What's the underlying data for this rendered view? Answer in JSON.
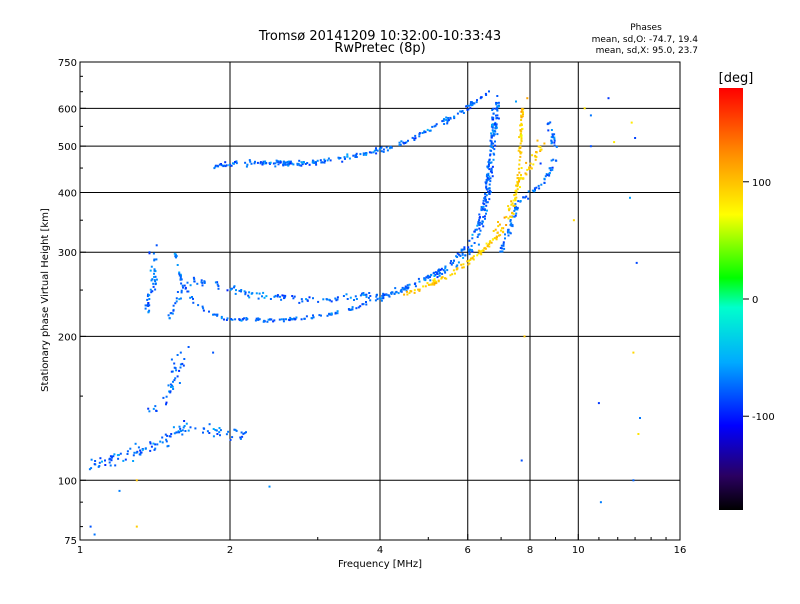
{
  "chart_data": {
    "type": "scatter",
    "title": "Tromsø 20141209 10:32:00-10:33:43",
    "subtitle": "RwPretec (8p)",
    "xlabel": "Frequency [MHz]",
    "ylabel": "Stationary phase Virtual Height [km]",
    "x_scale": "log",
    "y_scale": "log",
    "xlim": [
      1,
      16
    ],
    "ylim": [
      75,
      750
    ],
    "x_ticks": [
      1,
      2,
      4,
      6,
      8,
      10,
      16
    ],
    "y_ticks": [
      75,
      100,
      200,
      300,
      400,
      500,
      600,
      750
    ],
    "x_gridlines": [
      2,
      4,
      6,
      8,
      10
    ],
    "y_gridlines": [
      100,
      200,
      300,
      400,
      500,
      600
    ],
    "grid": true,
    "annotation": {
      "heading": "Phases",
      "line_o": "mean, sd,O: -74.7, 19.4",
      "line_x": "mean, sd,X:  95.0, 23.7"
    },
    "colorbar": {
      "label": "[deg]",
      "ticks": [
        100,
        0,
        -100
      ],
      "range": [
        -180,
        180
      ],
      "colormap": "rainbow"
    },
    "series": [
      {
        "name": "O",
        "phase_deg": -74.7,
        "traces": [
          {
            "points": [
              [
                1.52,
                220
              ],
              [
                1.55,
                235
              ],
              [
                1.6,
                250
              ],
              [
                1.65,
                258
              ],
              [
                1.7,
                262
              ],
              [
                1.8,
                260
              ],
              [
                1.95,
                252
              ],
              [
                2.2,
                245
              ],
              [
                2.6,
                240
              ],
              [
                3.0,
                238
              ],
              [
                3.4,
                240
              ],
              [
                3.8,
                242
              ],
              [
                4.2,
                245
              ],
              [
                4.6,
                255
              ],
              [
                5.0,
                265
              ],
              [
                5.4,
                275
              ],
              [
                5.8,
                290
              ],
              [
                6.1,
                305
              ],
              [
                6.3,
                325
              ],
              [
                6.5,
                360
              ],
              [
                6.6,
                400
              ],
              [
                6.7,
                450
              ],
              [
                6.8,
                520
              ],
              [
                6.85,
                600
              ],
              [
                6.9,
                640
              ]
            ],
            "spread": 0.03,
            "count": 300
          },
          {
            "points": [
              [
                1.55,
                300
              ],
              [
                1.6,
                260
              ],
              [
                1.7,
                235
              ],
              [
                1.85,
                222
              ],
              [
                2.0,
                217
              ],
              [
                2.5,
                216
              ],
              [
                3.0,
                220
              ],
              [
                3.5,
                228
              ],
              [
                4.0,
                240
              ],
              [
                4.5,
                252
              ],
              [
                5.0,
                265
              ],
              [
                5.5,
                285
              ],
              [
                6.0,
                310
              ],
              [
                6.3,
                345
              ],
              [
                6.5,
                390
              ],
              [
                6.6,
                450
              ],
              [
                6.7,
                520
              ],
              [
                6.75,
                600
              ]
            ],
            "spread": 0.012,
            "count": 260
          },
          {
            "points": [
              [
                1.85,
                455
              ],
              [
                2.2,
                462
              ],
              [
                2.6,
                460
              ],
              [
                3.0,
                462
              ],
              [
                3.5,
                475
              ],
              [
                4.0,
                490
              ],
              [
                4.5,
                510
              ],
              [
                5.0,
                540
              ],
              [
                5.5,
                570
              ],
              [
                6.0,
                600
              ],
              [
                6.3,
                625
              ],
              [
                6.6,
                650
              ]
            ],
            "spread": 0.02,
            "count": 230
          },
          {
            "points": [
              [
                1.05,
                108
              ],
              [
                1.15,
                110
              ],
              [
                1.3,
                115
              ],
              [
                1.45,
                120
              ],
              [
                1.55,
                126
              ],
              [
                1.7,
                130
              ],
              [
                1.85,
                127
              ],
              [
                2.0,
                125
              ],
              [
                2.15,
                124
              ]
            ],
            "spread": 0.05,
            "count": 120
          },
          {
            "points": [
              [
                1.4,
                140
              ],
              [
                1.5,
                150
              ],
              [
                1.55,
                165
              ],
              [
                1.6,
                180
              ],
              [
                1.65,
                195
              ]
            ],
            "spread": 0.06,
            "count": 40
          },
          {
            "points": [
              [
                1.35,
                225
              ],
              [
                1.38,
                240
              ],
              [
                1.4,
                250
              ],
              [
                1.42,
                270
              ],
              [
                1.4,
                300
              ]
            ],
            "spread": 0.05,
            "count": 45
          },
          {
            "points": [
              [
                7.0,
                300
              ],
              [
                7.3,
                340
              ],
              [
                7.6,
                380
              ],
              [
                8.0,
                400
              ],
              [
                8.5,
                420
              ],
              [
                8.8,
                450
              ],
              [
                9.0,
                480
              ],
              [
                8.9,
                520
              ],
              [
                8.7,
                560
              ]
            ],
            "spread": 0.03,
            "count": 100
          }
        ]
      },
      {
        "name": "X",
        "phase_deg": 95.0,
        "traces": [
          {
            "points": [
              [
                4.5,
                245
              ],
              [
                5.0,
                255
              ],
              [
                5.5,
                268
              ],
              [
                6.0,
                285
              ],
              [
                6.5,
                305
              ],
              [
                7.0,
                330
              ],
              [
                7.3,
                355
              ],
              [
                7.5,
                390
              ],
              [
                7.6,
                440
              ],
              [
                7.65,
                500
              ],
              [
                7.7,
                560
              ],
              [
                7.75,
                610
              ]
            ],
            "spread": 0.02,
            "count": 170
          },
          {
            "points": [
              [
                6.8,
                330
              ],
              [
                7.2,
                360
              ],
              [
                7.5,
                400
              ],
              [
                7.8,
                440
              ],
              [
                8.2,
                470
              ],
              [
                8.5,
                520
              ]
            ],
            "spread": 0.04,
            "count": 60
          }
        ]
      }
    ],
    "sparse_points": [
      [
        10.3,
        600
      ],
      [
        10.6,
        580
      ],
      [
        11.5,
        630
      ],
      [
        12.8,
        560
      ],
      [
        13.0,
        520
      ],
      [
        10.6,
        500
      ],
      [
        11.8,
        510
      ],
      [
        12.7,
        390
      ],
      [
        13.1,
        285
      ],
      [
        12.9,
        185
      ],
      [
        13.3,
        135
      ],
      [
        11.0,
        145
      ],
      [
        13.2,
        125
      ],
      [
        11.1,
        90
      ],
      [
        12.9,
        100
      ],
      [
        7.8,
        200
      ],
      [
        7.7,
        110
      ],
      [
        8.4,
        460
      ],
      [
        9.8,
        350
      ],
      [
        2.4,
        97
      ],
      [
        1.2,
        95
      ],
      [
        1.3,
        80
      ],
      [
        1.05,
        80
      ],
      [
        1.07,
        77
      ],
      [
        1.3,
        100
      ],
      [
        1.85,
        185
      ],
      [
        7.5,
        620
      ],
      [
        7.9,
        630
      ]
    ]
  }
}
